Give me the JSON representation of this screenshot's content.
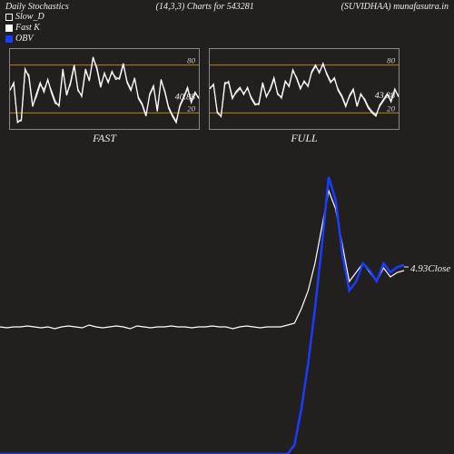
{
  "header": {
    "left": "Daily Stochastics",
    "center": "(14,3,3) Charts for 543281",
    "right": "(SUVIDHAA) munafasutra.in"
  },
  "legend": [
    {
      "label": "Slow_D",
      "swatch_border": "#ffffff",
      "swatch_fill": "transparent"
    },
    {
      "label": "Fast K",
      "swatch_border": "#ffffff",
      "swatch_fill": "#ffffff"
    },
    {
      "label": "OBV",
      "swatch_border": "#1a3cff",
      "swatch_fill": "#1a3cff"
    }
  ],
  "colors": {
    "bg": "#221f1f",
    "border": "#888888",
    "grid80": "#b8860b",
    "grid20": "#b8860b",
    "line_white": "#ffffff",
    "line_blue": "#1a3cff",
    "text": "#eeeeee"
  },
  "mini": {
    "width_svg": 210,
    "height_svg": 90,
    "ylim": [
      0,
      100
    ],
    "yticks": [
      20,
      80
    ],
    "fast": {
      "label": "FAST",
      "annotation": "40.88",
      "slow_d": [
        50,
        55,
        10,
        10,
        72,
        68,
        30,
        40,
        55,
        50,
        60,
        48,
        35,
        28,
        72,
        45,
        55,
        78,
        50,
        40,
        72,
        62,
        88,
        78,
        55,
        68,
        60,
        70,
        65,
        62,
        80,
        60,
        50,
        62,
        40,
        32,
        18,
        42,
        52,
        25,
        60,
        48,
        28,
        18,
        10,
        28,
        38,
        50,
        35,
        44,
        40
      ],
      "fast_k": [
        48,
        58,
        8,
        12,
        75,
        65,
        28,
        44,
        58,
        46,
        62,
        45,
        32,
        30,
        75,
        42,
        58,
        80,
        48,
        42,
        75,
        60,
        90,
        75,
        52,
        70,
        58,
        72,
        62,
        64,
        82,
        58,
        48,
        64,
        38,
        30,
        16,
        44,
        54,
        22,
        62,
        46,
        26,
        16,
        8,
        30,
        40,
        52,
        33,
        46,
        38
      ]
    },
    "full": {
      "label": "FULL",
      "annotation": "43.38",
      "slow_d": [
        52,
        54,
        22,
        15,
        55,
        60,
        40,
        45,
        50,
        45,
        50,
        40,
        32,
        30,
        55,
        42,
        48,
        62,
        45,
        38,
        58,
        55,
        72,
        65,
        52,
        58,
        55,
        70,
        78,
        72,
        80,
        70,
        60,
        62,
        50,
        42,
        30,
        40,
        48,
        30,
        42,
        38,
        28,
        22,
        18,
        28,
        35,
        42,
        36,
        48,
        42
      ],
      "fast_k": [
        50,
        56,
        20,
        16,
        58,
        58,
        38,
        47,
        52,
        43,
        52,
        38,
        30,
        32,
        58,
        40,
        50,
        64,
        43,
        40,
        60,
        53,
        74,
        63,
        50,
        60,
        53,
        72,
        80,
        70,
        82,
        68,
        58,
        64,
        48,
        40,
        28,
        42,
        50,
        28,
        44,
        36,
        26,
        20,
        16,
        30,
        37,
        44,
        34,
        50,
        40
      ]
    }
  },
  "big": {
    "width_svg": 500,
    "height_svg": 330,
    "annotation": "4.93Close",
    "ann_x": 452,
    "ann_y": 120,
    "close_line": [
      190,
      191,
      190,
      190,
      189,
      190,
      191,
      190,
      192,
      190,
      189,
      190,
      191,
      188,
      190,
      191,
      190,
      189,
      190,
      192,
      189,
      190,
      191,
      190,
      190,
      189,
      190,
      190,
      191,
      190,
      190,
      189,
      190,
      190,
      192,
      190,
      189,
      190,
      191,
      190,
      190,
      190,
      188,
      186,
      170,
      150,
      120,
      80,
      40,
      60,
      100,
      140,
      130,
      120,
      130,
      140,
      125,
      135,
      130,
      128
    ],
    "obv_line": [
      330,
      330,
      330,
      330,
      330,
      330,
      330,
      330,
      330,
      330,
      330,
      330,
      330,
      330,
      330,
      330,
      330,
      330,
      330,
      330,
      330,
      330,
      330,
      330,
      330,
      330,
      330,
      330,
      330,
      330,
      330,
      330,
      330,
      330,
      330,
      330,
      330,
      330,
      330,
      330,
      330,
      330,
      330,
      320,
      280,
      230,
      170,
      100,
      25,
      50,
      110,
      150,
      140,
      120,
      128,
      140,
      120,
      130,
      124,
      122
    ]
  }
}
